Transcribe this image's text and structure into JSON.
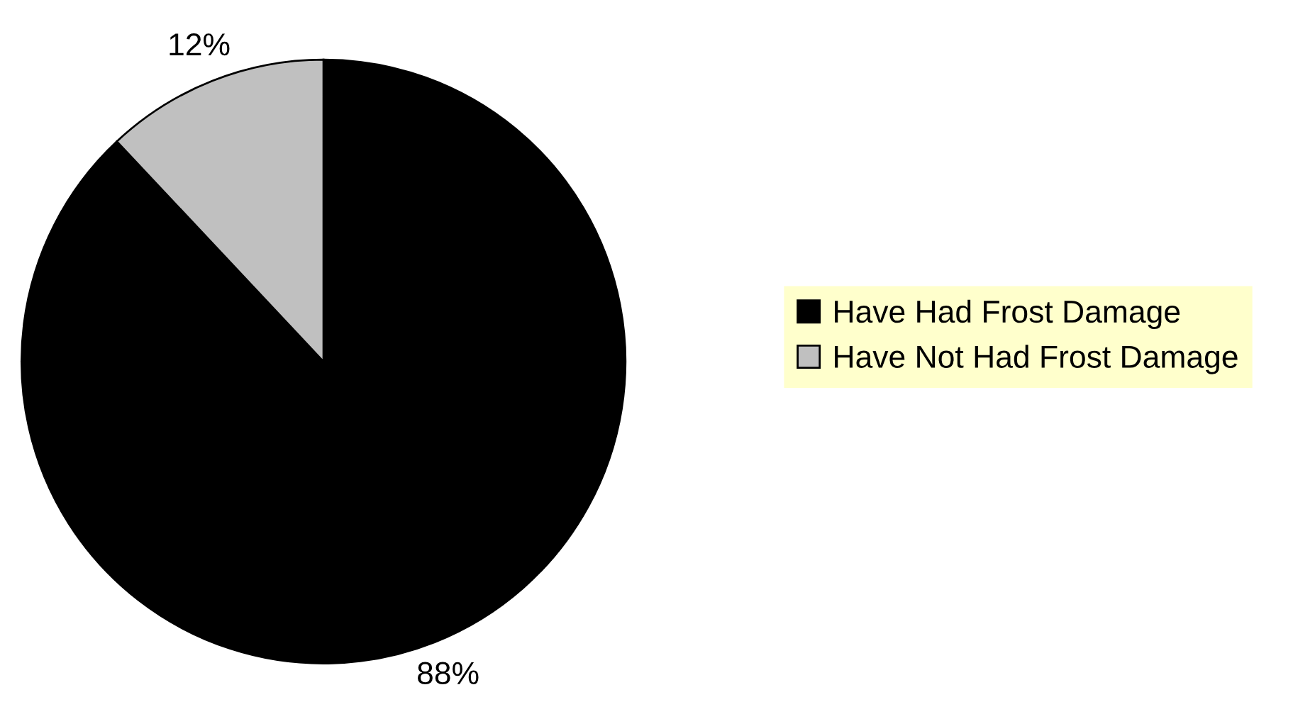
{
  "chart_data": {
    "type": "pie",
    "categories": [
      "Have Had Frost Damage",
      "Have Not Had Frost Damage"
    ],
    "values": [
      88,
      12
    ],
    "colors": [
      "#000000",
      "#c0c0c0"
    ],
    "value_labels": [
      "88%",
      "12%"
    ],
    "legend": "right"
  }
}
